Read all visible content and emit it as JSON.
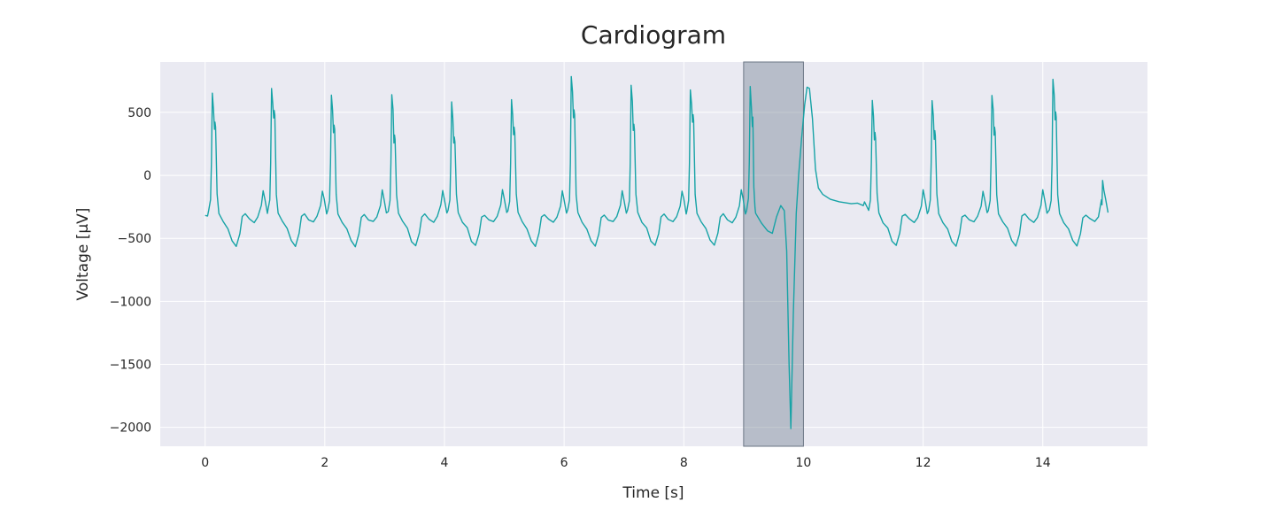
{
  "chart_data": {
    "type": "line",
    "title": "Cardiogram",
    "xlabel": "Time [s]",
    "ylabel": "Voltage [μV]",
    "xlim": [
      -0.75,
      15.75
    ],
    "ylim": [
      -2150,
      900
    ],
    "xticks": [
      0,
      2,
      4,
      6,
      8,
      10,
      12,
      14
    ],
    "yticks": [
      500,
      0,
      -500,
      -1000,
      -1500,
      -2000
    ],
    "ytick_labels": [
      "500",
      "0",
      "−500",
      "−1000",
      "−1500",
      "−2000"
    ],
    "grid": true,
    "line_color": "#17a3a6",
    "background_color": "#eaeaf2",
    "highlight": {
      "x_start": 9.0,
      "x_end": 10.0,
      "color": "#7a8796"
    },
    "beats": [
      {
        "t": 0.12,
        "peak": 650,
        "s2": 420
      },
      {
        "t": 1.11,
        "peak": 690,
        "s2": 520
      },
      {
        "t": 2.11,
        "peak": 640,
        "s2": 400
      },
      {
        "t": 3.12,
        "peak": 640,
        "s2": 320
      },
      {
        "t": 4.12,
        "peak": 580,
        "s2": 310
      },
      {
        "t": 5.12,
        "peak": 600,
        "s2": 380
      },
      {
        "t": 6.12,
        "peak": 780,
        "s2": 520
      },
      {
        "t": 7.12,
        "peak": 710,
        "s2": 410
      },
      {
        "t": 8.11,
        "peak": 680,
        "s2": 480
      },
      {
        "t": 9.11,
        "peak": 700,
        "s2": 460
      },
      {
        "t": 11.15,
        "peak": 590,
        "s2": 340
      },
      {
        "t": 12.15,
        "peak": 590,
        "s2": 350
      },
      {
        "t": 13.15,
        "peak": 640,
        "s2": 380
      },
      {
        "t": 14.17,
        "peak": 760,
        "s2": 500
      }
    ],
    "anomaly": {
      "t_start": 9.2,
      "points": [
        [
          9.2,
          -300
        ],
        [
          9.3,
          -380
        ],
        [
          9.4,
          -440
        ],
        [
          9.48,
          -460
        ],
        [
          9.55,
          -330
        ],
        [
          9.62,
          -240
        ],
        [
          9.68,
          -280
        ],
        [
          9.72,
          -600
        ],
        [
          9.76,
          -1500
        ],
        [
          9.79,
          -2010
        ],
        [
          9.83,
          -1100
        ],
        [
          9.88,
          -300
        ],
        [
          9.92,
          0
        ],
        [
          9.97,
          300
        ],
        [
          10.02,
          560
        ],
        [
          10.06,
          700
        ],
        [
          10.1,
          690
        ],
        [
          10.15,
          450
        ],
        [
          10.2,
          50
        ],
        [
          10.25,
          -100
        ],
        [
          10.32,
          -150
        ],
        [
          10.45,
          -190
        ],
        [
          10.6,
          -210
        ],
        [
          10.8,
          -225
        ],
        [
          10.9,
          -220
        ],
        [
          11.0,
          -240
        ]
      ]
    },
    "end_value": -40
  }
}
